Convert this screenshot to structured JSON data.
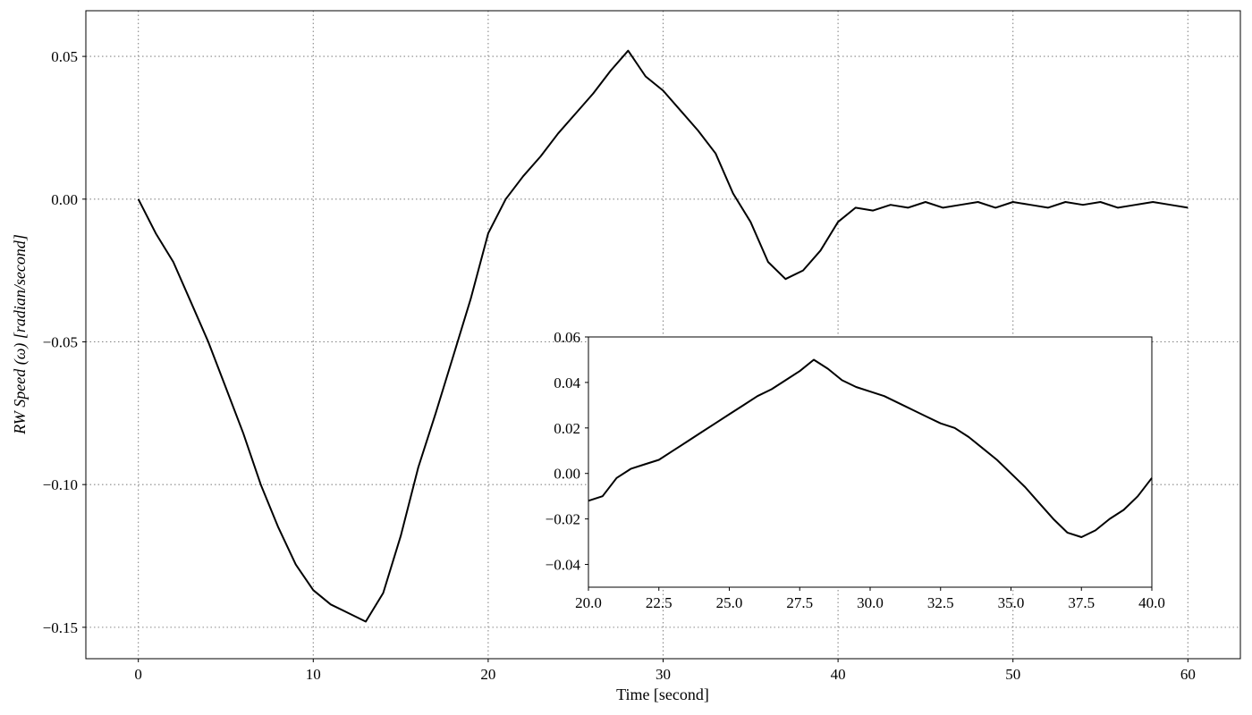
{
  "chart_data": [
    {
      "type": "line",
      "role": "main",
      "xlabel": "Time [second]",
      "ylabel": "RW Speed (ω) [radian/second]",
      "xlim": [
        -3,
        63
      ],
      "ylim": [
        -0.161,
        0.066
      ],
      "xticks": [
        0,
        10,
        20,
        30,
        40,
        50,
        60
      ],
      "xtick_labels": [
        "0",
        "10",
        "20",
        "30",
        "40",
        "50",
        "60"
      ],
      "yticks": [
        -0.15,
        -0.1,
        -0.05,
        0.0,
        0.05
      ],
      "ytick_labels": [
        "−0.15",
        "−0.10",
        "−0.05",
        "0.00",
        "0.05"
      ],
      "grid": true,
      "series": [
        {
          "color": "#000000",
          "x": [
            0,
            1,
            2,
            3,
            4,
            5,
            6,
            7,
            8,
            9,
            10,
            11,
            12,
            13,
            14,
            15,
            16,
            17,
            18,
            19,
            20,
            21,
            22,
            23,
            24,
            25,
            26,
            27,
            28,
            29,
            30,
            31,
            32,
            33,
            34,
            35,
            36,
            37,
            38,
            39,
            40,
            41,
            42,
            43,
            44,
            45,
            46,
            47,
            48,
            49,
            50,
            51,
            52,
            53,
            54,
            55,
            56,
            57,
            58,
            59,
            60
          ],
          "y": [
            0.0,
            -0.012,
            -0.022,
            -0.036,
            -0.05,
            -0.066,
            -0.082,
            -0.1,
            -0.115,
            -0.128,
            -0.137,
            -0.142,
            -0.145,
            -0.148,
            -0.138,
            -0.118,
            -0.094,
            -0.075,
            -0.055,
            -0.035,
            -0.012,
            0.0,
            0.008,
            0.015,
            0.023,
            0.03,
            0.037,
            0.045,
            0.052,
            0.043,
            0.038,
            0.031,
            0.024,
            0.016,
            0.002,
            -0.008,
            -0.022,
            -0.028,
            -0.025,
            -0.018,
            -0.008,
            -0.003,
            -0.004,
            -0.002,
            -0.003,
            -0.001,
            -0.003,
            -0.002,
            -0.001,
            -0.003,
            -0.001,
            -0.002,
            -0.003,
            -0.001,
            -0.002,
            -0.001,
            -0.003,
            -0.002,
            -0.001,
            -0.002,
            -0.003
          ]
        }
      ]
    },
    {
      "type": "line",
      "role": "inset",
      "xlabel": "",
      "ylabel": "",
      "xlim": [
        20,
        40
      ],
      "ylim": [
        -0.05,
        0.06
      ],
      "xticks": [
        20,
        22.5,
        25,
        27.5,
        30,
        32.5,
        35,
        37.5,
        40
      ],
      "xtick_labels": [
        "20.0",
        "22.5",
        "25.0",
        "27.5",
        "30.0",
        "32.5",
        "35.0",
        "37.5",
        "40.0"
      ],
      "yticks": [
        -0.04,
        -0.02,
        0.0,
        0.02,
        0.04,
        0.06
      ],
      "ytick_labels": [
        "−0.04",
        "−0.02",
        "0.00",
        "0.02",
        "0.04",
        "0.06"
      ],
      "grid": false,
      "series": [
        {
          "color": "#000000",
          "x": [
            20,
            20.5,
            21,
            21.5,
            22,
            22.5,
            23,
            23.5,
            24,
            24.5,
            25,
            25.5,
            26,
            26.5,
            27,
            27.5,
            28,
            28.5,
            29,
            29.5,
            30,
            30.5,
            31,
            31.5,
            32,
            32.5,
            33,
            33.5,
            34,
            34.5,
            35,
            35.5,
            36,
            36.5,
            37,
            37.5,
            38,
            38.5,
            39,
            39.5,
            40
          ],
          "y": [
            -0.012,
            -0.01,
            -0.002,
            0.002,
            0.004,
            0.006,
            0.01,
            0.014,
            0.018,
            0.022,
            0.026,
            0.03,
            0.034,
            0.037,
            0.041,
            0.045,
            0.05,
            0.046,
            0.041,
            0.038,
            0.036,
            0.034,
            0.031,
            0.028,
            0.025,
            0.022,
            0.02,
            0.016,
            0.011,
            0.006,
            0.0,
            -0.006,
            -0.013,
            -0.02,
            -0.026,
            -0.028,
            -0.025,
            -0.02,
            -0.016,
            -0.01,
            -0.002
          ]
        }
      ]
    }
  ]
}
